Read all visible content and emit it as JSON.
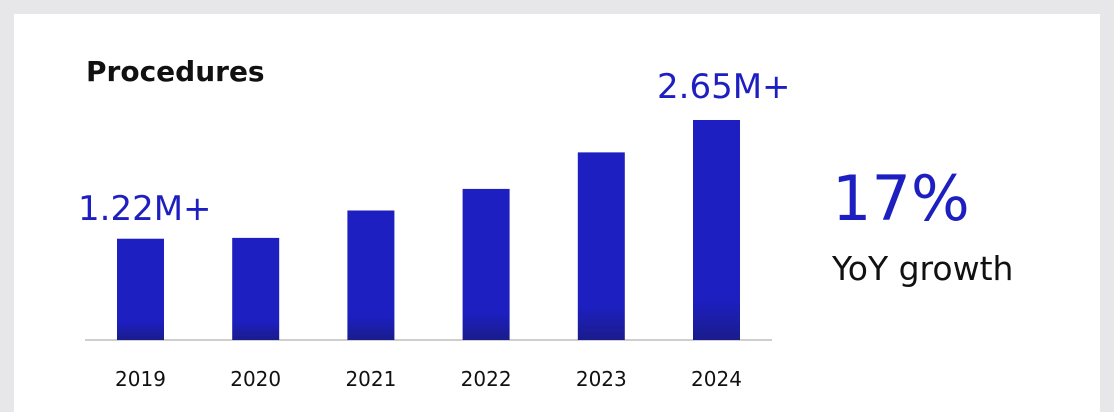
{
  "chart_data": {
    "type": "bar",
    "title": "Procedures",
    "categories": [
      "2019",
      "2020",
      "2021",
      "2022",
      "2023",
      "2024"
    ],
    "values": [
      1.22,
      1.23,
      1.56,
      1.82,
      2.26,
      2.65
    ],
    "data_labels": [
      "1.22M+",
      "",
      "",
      "",
      "",
      "2.65M+"
    ],
    "xlabel": "",
    "ylabel": "",
    "ylim": [
      0,
      2.65
    ],
    "grid": false,
    "bar_color": "#1d1fc0",
    "bar_color_bottom": "#1a1c8c"
  },
  "kpi": {
    "value": "17%",
    "caption": "YoY growth"
  },
  "colors": {
    "accent": "#1d1fc0",
    "background": "#e7e7ea",
    "card": "#ffffff"
  }
}
